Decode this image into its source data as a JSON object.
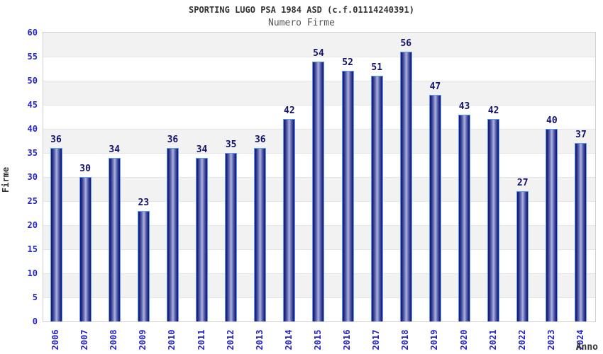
{
  "header": {
    "title": "SPORTING LUGO PSA 1984 ASD (c.f.01114240391)",
    "subtitle": "Numero Firme"
  },
  "chart_data": {
    "type": "bar",
    "title": "SPORTING LUGO PSA 1984 ASD (c.f.01114240391)",
    "subtitle": "Numero Firme",
    "xlabel": "Anno",
    "ylabel": "Firme",
    "categories": [
      "2006",
      "2007",
      "2008",
      "2009",
      "2010",
      "2011",
      "2012",
      "2013",
      "2014",
      "2015",
      "2016",
      "2017",
      "2018",
      "2019",
      "2020",
      "2021",
      "2022",
      "2023",
      "2024"
    ],
    "values": [
      36,
      30,
      34,
      23,
      36,
      34,
      35,
      36,
      42,
      54,
      52,
      51,
      56,
      47,
      43,
      42,
      27,
      40,
      37
    ],
    "ylim": [
      0,
      60
    ],
    "ytick_step": 5,
    "yticks": [
      0,
      5,
      10,
      15,
      20,
      25,
      30,
      35,
      40,
      45,
      50,
      55,
      60
    ],
    "grid": true,
    "legend": "none",
    "colors": {
      "tick_label_blue": "#2424cb",
      "value_label_navy": "#13136e",
      "bar_border": "#5c9ff0",
      "bar_dark": "#1b1b7e",
      "bar_mid": "#5a62aa",
      "bar_light": "#aab4de",
      "band_gray": "#f2f2f2",
      "gridline": "#e5e5e5",
      "title_color": "#333333",
      "subtitle_color": "#555555"
    }
  }
}
